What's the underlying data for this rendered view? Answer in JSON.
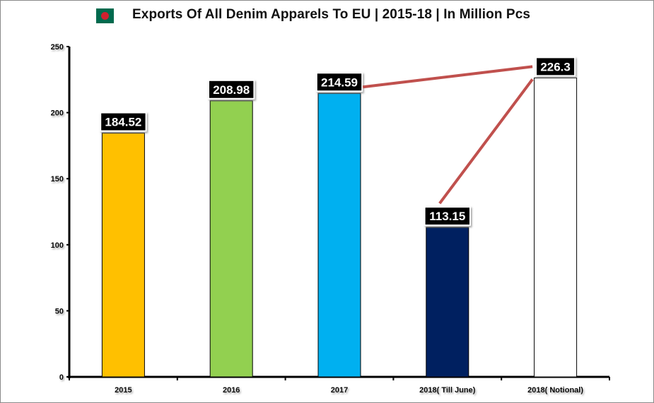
{
  "chart_data": {
    "type": "bar",
    "title": "Exports Of All Denim Apparels To EU | 2015-18 | In Million Pcs",
    "categories": [
      "2015",
      "2016",
      "2017",
      "2018( Till June)",
      "2018( Notional)"
    ],
    "values": [
      184.52,
      208.98,
      214.59,
      113.15,
      226.3
    ],
    "data_labels": [
      "184.52",
      "208.98",
      "214.59",
      "113.15",
      "226.3"
    ],
    "colors": [
      "#ffc000",
      "#92d050",
      "#00b0f0",
      "#002060",
      "#ffffff"
    ],
    "ylim": [
      0,
      250
    ],
    "yticks": [
      "0",
      "50",
      "100",
      "150",
      "200",
      "250"
    ],
    "xlabel": "",
    "ylabel": "",
    "grid": false,
    "legend": "none",
    "annotations": {
      "line_color": "#c0504d",
      "connects": [
        [
          "2017",
          "2018( Notional)"
        ],
        [
          "2018( Till June)",
          "2018( Notional)"
        ]
      ]
    }
  },
  "flag": {
    "country_icon": "bangladesh-flag-icon",
    "colors": [
      "#006a4e",
      "#d0202f"
    ]
  }
}
